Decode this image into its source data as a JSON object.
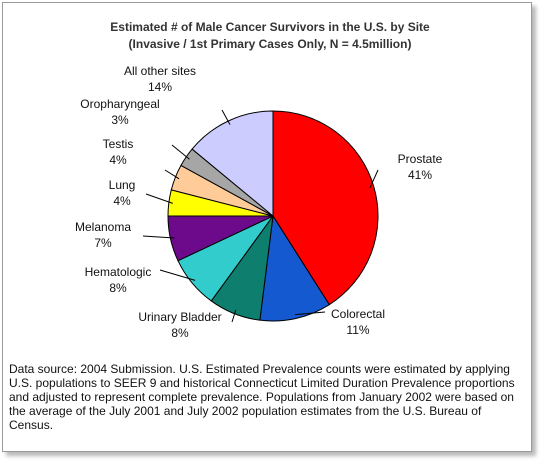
{
  "chart_data": {
    "type": "pie",
    "title": "Estimated # of Male Cancer Survivors in the U.S. by Site",
    "subtitle": "(Invasive / 1st Primary Cases Only, N = 4.5million)",
    "categories": [
      "Prostate",
      "Colorectal",
      "Urinary Bladder",
      "Hematologic",
      "Melanoma",
      "Lung",
      "Testis",
      "Oropharyngeal",
      "All other sites"
    ],
    "values": [
      41,
      11,
      8,
      8,
      7,
      4,
      4,
      3,
      14
    ],
    "value_labels": [
      "41%",
      "11%",
      "8%",
      "8%",
      "7%",
      "4%",
      "4%",
      "3%",
      "14%"
    ],
    "colors": [
      "#ff0000",
      "#1459d0",
      "#0e7f6e",
      "#33cccc",
      "#6d0a8c",
      "#ffff00",
      "#ffcc99",
      "#a6a6a6",
      "#ccccff"
    ],
    "note": "Data source: 2004 Submission. U.S. Estimated Prevalence counts were estimated by applying U.S. populations to SEER 9 and historical Connecticut Limited Duration Prevalence proportions and adjusted to represent complete prevalence. Populations from January 2002 were based on the average of the July 2001 and July 2002 population estimates from the U.S. Bureau of Census."
  }
}
